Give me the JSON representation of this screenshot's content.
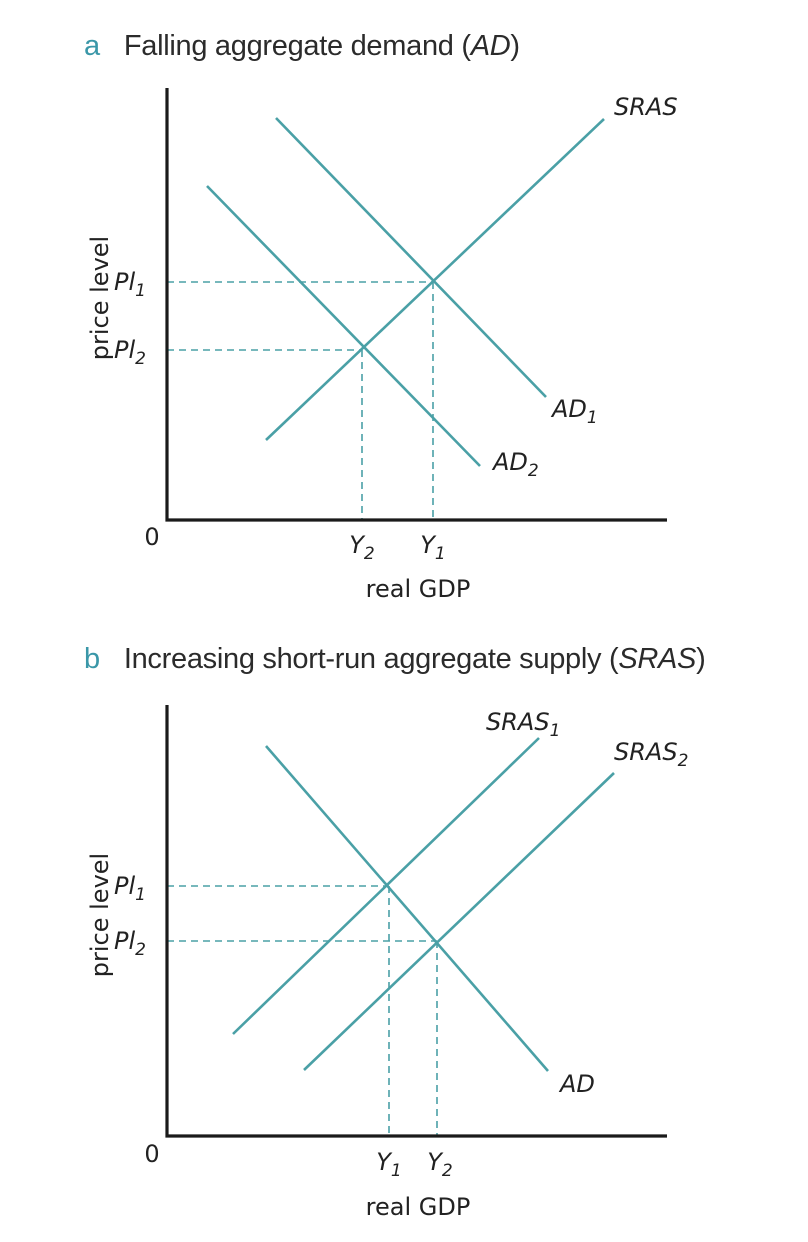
{
  "panel_a": {
    "letter": "a",
    "title_prefix": "Falling aggregate demand (",
    "title_abbr": "AD",
    "title_suffix": ")",
    "y_axis_label": "price level",
    "x_axis_label": "real GDP",
    "origin_label": "0",
    "price_labels": [
      {
        "main": "Pl",
        "sub": "1"
      },
      {
        "main": "Pl",
        "sub": "2"
      }
    ],
    "quantity_labels": [
      {
        "main": "Y",
        "sub": "2"
      },
      {
        "main": "Y",
        "sub": "1"
      }
    ],
    "curve_labels": [
      {
        "main": "SRAS",
        "sub": ""
      },
      {
        "main": "AD",
        "sub": "1"
      },
      {
        "main": "AD",
        "sub": "2"
      }
    ]
  },
  "panel_b": {
    "letter": "b",
    "title_prefix": "Increasing short-run aggregate supply (",
    "title_abbr": "SRAS",
    "title_suffix": ")",
    "y_axis_label": "price level",
    "x_axis_label": "real GDP",
    "origin_label": "0",
    "price_labels": [
      {
        "main": "Pl",
        "sub": "1"
      },
      {
        "main": "Pl",
        "sub": "2"
      }
    ],
    "quantity_labels": [
      {
        "main": "Y",
        "sub": "1"
      },
      {
        "main": "Y",
        "sub": "2"
      }
    ],
    "curve_labels": [
      {
        "main": "SRAS",
        "sub": "1"
      },
      {
        "main": "SRAS",
        "sub": "2"
      },
      {
        "main": "AD",
        "sub": ""
      }
    ]
  },
  "colors": {
    "curve": "#4aa0a6",
    "panel_letter": "#3a97a8",
    "axis": "#1a1a1a"
  }
}
